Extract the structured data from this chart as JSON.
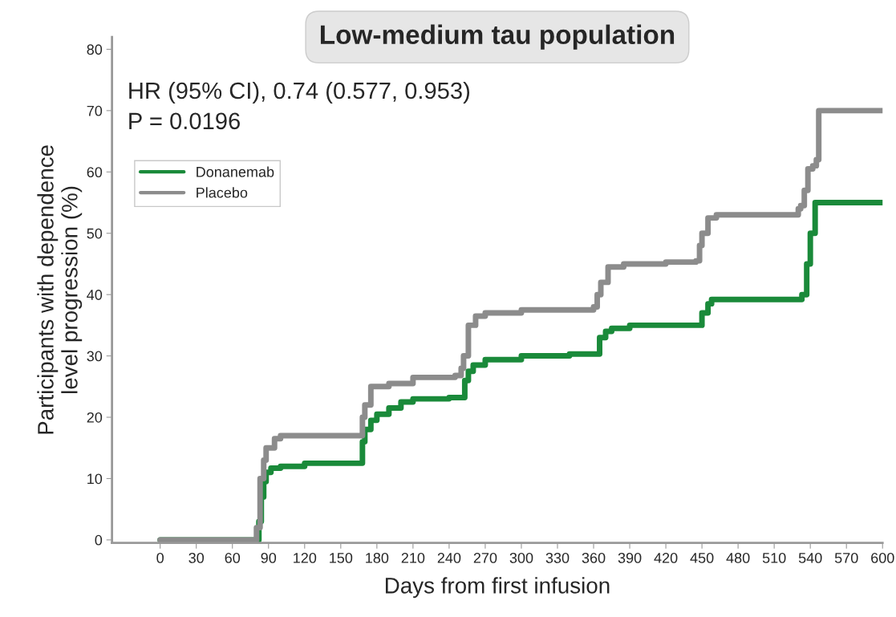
{
  "chart_data": {
    "type": "step",
    "title": "Low-medium tau population",
    "xlabel": "Days from first infusion",
    "ylabel": "Participants with dependence\nlevel progression (%)",
    "annotations": [
      "HR (95% CI), 0.74 (0.577, 0.953)",
      "P = 0.0196"
    ],
    "series": [
      {
        "name": "Donanemab",
        "color": "#1a8a3a",
        "x": [
          0,
          80,
          82,
          84,
          86,
          88,
          92,
          100,
          120,
          166,
          168,
          170,
          175,
          180,
          190,
          200,
          210,
          240,
          250,
          253,
          256,
          260,
          270,
          300,
          340,
          361,
          365,
          370,
          375,
          390,
          445,
          450,
          455,
          458,
          529,
          533,
          537,
          540,
          544,
          600
        ],
        "values": [
          0,
          0,
          3,
          7,
          9.5,
          11,
          11.7,
          12,
          12.5,
          12.5,
          16,
          18,
          19.5,
          20.5,
          21.5,
          22.5,
          23,
          23.2,
          23.2,
          26,
          27.5,
          28.5,
          29.4,
          30,
          30.3,
          30.3,
          33,
          34,
          34.5,
          35,
          35,
          37,
          38.5,
          39.2,
          39.2,
          40,
          45,
          50,
          55,
          55
        ]
      },
      {
        "name": "Placebo",
        "color": "#8c8c8c",
        "x": [
          0,
          78,
          80,
          83,
          86,
          88,
          95,
          100,
          165,
          168,
          170,
          175,
          190,
          210,
          245,
          250,
          252,
          256,
          262,
          270,
          300,
          360,
          363,
          366,
          372,
          385,
          420,
          445,
          448,
          450,
          455,
          462,
          525,
          530,
          532,
          535,
          538,
          542,
          545,
          547,
          600
        ],
        "values": [
          0,
          0,
          2,
          10,
          13,
          15,
          16.5,
          17,
          17,
          20,
          22,
          25,
          25.5,
          26.5,
          26.8,
          28,
          30,
          35,
          36.5,
          37,
          37.5,
          38,
          40,
          42,
          44.5,
          45,
          45.3,
          45.5,
          48,
          50,
          52.5,
          53,
          53,
          54,
          54.5,
          57,
          60.5,
          61,
          62,
          70,
          70
        ]
      }
    ],
    "xlim": [
      -40,
      600
    ],
    "xticks": [
      0,
      30,
      60,
      90,
      120,
      150,
      180,
      210,
      240,
      270,
      300,
      330,
      360,
      390,
      420,
      450,
      480,
      510,
      540,
      570,
      600
    ],
    "ylim": [
      -0.5,
      82
    ],
    "yticks": [
      0,
      10,
      20,
      30,
      40,
      50,
      60,
      70,
      80
    ],
    "legend": "top left",
    "grid": false,
    "line_style": "solid"
  }
}
